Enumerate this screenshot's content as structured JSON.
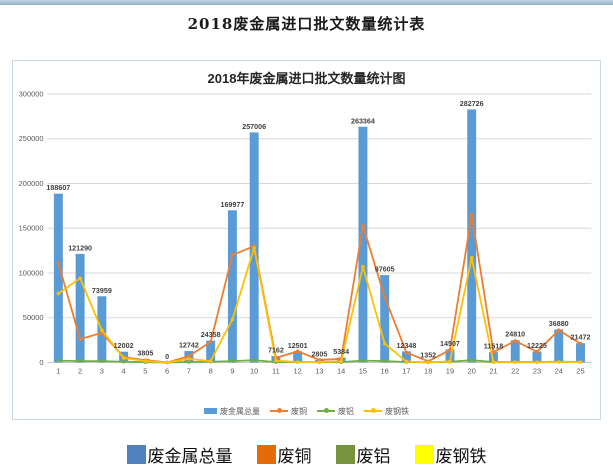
{
  "page": {
    "title": "2018废金属进口批文数量统计表"
  },
  "colors": {
    "top_strip": "#9db8cb",
    "chart_border": "#ccd8e0",
    "grid": "#d9d9d9",
    "axis": "#bfbfbf",
    "tick_label": "#595959",
    "bar_label": "#3f3f3f"
  },
  "chart_data": {
    "type": "bar",
    "combo": "bar + line",
    "title": "2018年废金属进口批文数量统计图",
    "categories": [
      "1",
      "2",
      "3",
      "4",
      "5",
      "6",
      "7",
      "8",
      "9",
      "10",
      "11",
      "12",
      "13",
      "14",
      "15",
      "16",
      "17",
      "18",
      "19",
      "20",
      "21",
      "22",
      "23",
      "24",
      "25"
    ],
    "series": [
      {
        "name": "废金属总量",
        "render": "bar",
        "color": "#5b9bd5",
        "labeled": true,
        "values": [
          188607,
          121290,
          73959,
          12002,
          3805,
          0,
          12742,
          24358,
          169977,
          257006,
          7162,
          12501,
          2805,
          5384,
          263364,
          97605,
          12348,
          1352,
          14507,
          282726,
          11518,
          24810,
          12225,
          36880,
          21472
        ]
      },
      {
        "name": "废铜",
        "render": "line",
        "color": "#ed7d31",
        "values": [
          111000,
          26000,
          33000,
          6000,
          2500,
          0,
          7000,
          23000,
          120000,
          130000,
          5000,
          12500,
          2800,
          4000,
          153000,
          73000,
          11000,
          1300,
          14000,
          165000,
          11500,
          24000,
          12000,
          36000,
          21000
        ]
      },
      {
        "name": "废铝",
        "render": "line",
        "color": "#70ad47",
        "values": [
          2000,
          1500,
          1500,
          800,
          300,
          0,
          500,
          800,
          1500,
          2500,
          300,
          500,
          200,
          300,
          2000,
          1500,
          500,
          100,
          800,
          2500,
          400,
          600,
          400,
          900,
          600
        ]
      },
      {
        "name": "废钢铁",
        "render": "line",
        "color": "#ffc000",
        "values": [
          77000,
          94000,
          36000,
          5000,
          1500,
          0,
          4000,
          1500,
          48000,
          128000,
          2000,
          500,
          300,
          1300,
          107000,
          21000,
          1000,
          100,
          1200,
          117000,
          300,
          300,
          300,
          500,
          400
        ]
      }
    ],
    "ylim": [
      0,
      300000
    ],
    "yticks": [
      0,
      50000,
      100000,
      150000,
      200000,
      250000,
      300000
    ],
    "grid": true,
    "legend_position": "bottom"
  },
  "bottom_legend": {
    "colors": [
      "#4f81bd",
      "#e36c09",
      "#77933c",
      "#ffff00"
    ]
  }
}
